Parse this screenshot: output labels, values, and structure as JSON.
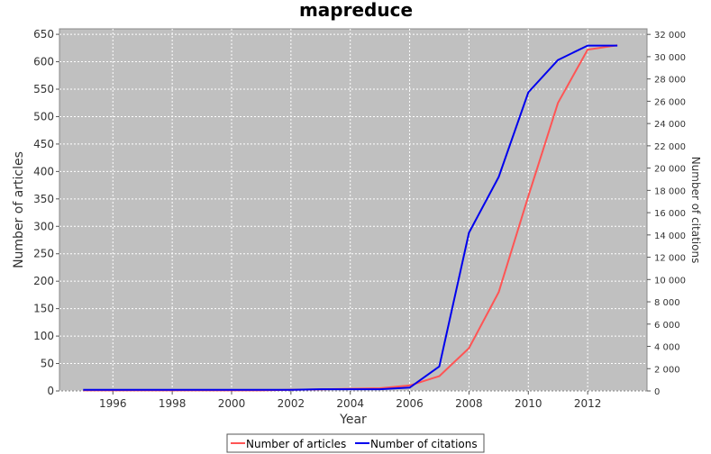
{
  "chart_data": {
    "type": "line",
    "title": "mapreduce",
    "xlabel": "Year",
    "ylabel": "Number of articles",
    "y2label": "Number of citations",
    "x": [
      1995,
      1996,
      1997,
      1998,
      1999,
      2000,
      2001,
      2002,
      2003,
      2004,
      2005,
      2006,
      2007,
      2008,
      2009,
      2010,
      2011,
      2012,
      2013
    ],
    "xlim": [
      1994.2,
      2014.0
    ],
    "ylim": [
      0,
      660
    ],
    "y2lim": [
      0,
      32500
    ],
    "xticks": [
      "1996",
      "1998",
      "2000",
      "2002",
      "2004",
      "2006",
      "2008",
      "2010",
      "2012"
    ],
    "yticks": [
      "0",
      "50",
      "100",
      "150",
      "200",
      "250",
      "300",
      "350",
      "400",
      "450",
      "500",
      "550",
      "600",
      "650"
    ],
    "y2ticks": [
      "0",
      "2 000",
      "4 000",
      "6 000",
      "8 000",
      "10 000",
      "12 000",
      "14 000",
      "16 000",
      "18 000",
      "20 000",
      "22 000",
      "24 000",
      "26 000",
      "28 000",
      "30 000",
      "32 000"
    ],
    "grid": true,
    "legend_position": "bottom-center",
    "series": [
      {
        "name": "Number of articles",
        "axis": "left",
        "color": "#ff5555",
        "values": [
          1,
          1,
          1,
          1,
          1,
          1,
          1,
          2,
          3,
          4,
          5,
          10,
          27,
          78,
          180,
          355,
          525,
          622,
          630
        ]
      },
      {
        "name": "Number of citations",
        "axis": "right",
        "color": "#0000ee",
        "values": [
          100,
          100,
          100,
          100,
          100,
          100,
          100,
          100,
          150,
          150,
          150,
          300,
          2200,
          14200,
          19200,
          26800,
          29700,
          31000,
          31000
        ]
      }
    ]
  }
}
